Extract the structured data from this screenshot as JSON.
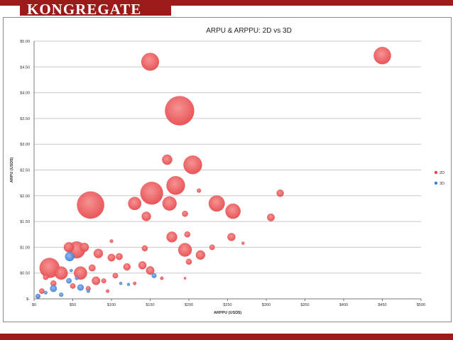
{
  "brand": {
    "name": "KONGREGATE"
  },
  "colors": {
    "brand_red": "#9b1b1b",
    "series_2d": "#e8464a",
    "series_3d": "#3a7fd6"
  },
  "chart_data": {
    "type": "scatter",
    "title": "ARPU & ARPPU: 2D vs 3D",
    "xlabel": "ARPPU (USD$)",
    "ylabel": "ARPU (USD$)",
    "xlim": [
      0,
      500
    ],
    "ylim": [
      0,
      5
    ],
    "x_ticks": [
      "$0",
      "$50",
      "$100",
      "$150",
      "$200",
      "$250",
      "$300",
      "$350",
      "$400",
      "$450",
      "$500"
    ],
    "y_ticks": [
      "$-",
      "$0.50",
      "$1.00",
      "$1.50",
      "$2.00",
      "$2.50",
      "$3.00",
      "$3.50",
      "$4.00",
      "$4.50",
      "$5.00"
    ],
    "grid": true,
    "legend_position": "right",
    "series": [
      {
        "name": "2D",
        "color": "#e8464a",
        "points": [
          {
            "x": 150,
            "y": 4.6,
            "size": 5.5
          },
          {
            "x": 450,
            "y": 4.72,
            "size": 5.2
          },
          {
            "x": 188,
            "y": 3.65,
            "size": 15
          },
          {
            "x": 73,
            "y": 1.82,
            "size": 13
          },
          {
            "x": 152,
            "y": 2.05,
            "size": 9
          },
          {
            "x": 183,
            "y": 2.2,
            "size": 6
          },
          {
            "x": 205,
            "y": 2.6,
            "size": 6
          },
          {
            "x": 236,
            "y": 1.85,
            "size": 4.5
          },
          {
            "x": 257,
            "y": 1.7,
            "size": 4
          },
          {
            "x": 172,
            "y": 2.7,
            "size": 1.8
          },
          {
            "x": 130,
            "y": 1.85,
            "size": 3
          },
          {
            "x": 175,
            "y": 1.85,
            "size": 3.5
          },
          {
            "x": 145,
            "y": 1.6,
            "size": 1.5
          },
          {
            "x": 195,
            "y": 1.65,
            "size": 0.6
          },
          {
            "x": 213,
            "y": 2.1,
            "size": 0.3
          },
          {
            "x": 318,
            "y": 2.05,
            "size": 0.9
          },
          {
            "x": 306,
            "y": 1.58,
            "size": 1
          },
          {
            "x": 178,
            "y": 1.2,
            "size": 2
          },
          {
            "x": 198,
            "y": 1.25,
            "size": 0.6
          },
          {
            "x": 255,
            "y": 1.2,
            "size": 1.1
          },
          {
            "x": 195,
            "y": 0.95,
            "size": 3.2
          },
          {
            "x": 215,
            "y": 0.85,
            "size": 1.5
          },
          {
            "x": 230,
            "y": 1.0,
            "size": 0.5
          },
          {
            "x": 270,
            "y": 1.08,
            "size": 0.15
          },
          {
            "x": 55,
            "y": 0.95,
            "size": 5
          },
          {
            "x": 20,
            "y": 0.6,
            "size": 7
          },
          {
            "x": 45,
            "y": 1.0,
            "size": 1.8
          },
          {
            "x": 65,
            "y": 1.0,
            "size": 1.4
          },
          {
            "x": 83,
            "y": 0.88,
            "size": 1.5
          },
          {
            "x": 100,
            "y": 0.8,
            "size": 1.0
          },
          {
            "x": 35,
            "y": 0.5,
            "size": 3
          },
          {
            "x": 60,
            "y": 0.5,
            "size": 3
          },
          {
            "x": 110,
            "y": 0.82,
            "size": 0.8
          },
          {
            "x": 100,
            "y": 1.12,
            "size": 0.2
          },
          {
            "x": 143,
            "y": 0.98,
            "size": 0.6
          },
          {
            "x": 200,
            "y": 0.72,
            "size": 0.6
          },
          {
            "x": 80,
            "y": 0.35,
            "size": 1.2
          },
          {
            "x": 105,
            "y": 0.45,
            "size": 0.5
          },
          {
            "x": 120,
            "y": 0.62,
            "size": 0.9
          },
          {
            "x": 140,
            "y": 0.65,
            "size": 1.1
          },
          {
            "x": 150,
            "y": 0.55,
            "size": 1.2
          },
          {
            "x": 10,
            "y": 0.15,
            "size": 0.5
          },
          {
            "x": 25,
            "y": 0.3,
            "size": 0.6
          },
          {
            "x": 70,
            "y": 0.2,
            "size": 0.4
          },
          {
            "x": 90,
            "y": 0.35,
            "size": 0.4
          },
          {
            "x": 165,
            "y": 0.4,
            "size": 0.2
          },
          {
            "x": 130,
            "y": 0.3,
            "size": 0.2
          },
          {
            "x": 195,
            "y": 0.4,
            "size": 0.1
          },
          {
            "x": 5,
            "y": 0.05,
            "size": 0.3
          },
          {
            "x": 15,
            "y": 0.42,
            "size": 0.5
          },
          {
            "x": 95,
            "y": 0.15,
            "size": 0.2
          },
          {
            "x": 50,
            "y": 0.25,
            "size": 0.5
          },
          {
            "x": 75,
            "y": 0.6,
            "size": 0.8
          }
        ]
      },
      {
        "name": "3D",
        "color": "#3a7fd6",
        "points": [
          {
            "x": 46,
            "y": 0.82,
            "size": 1.5
          },
          {
            "x": 155,
            "y": 0.45,
            "size": 0.4
          },
          {
            "x": 45,
            "y": 0.35,
            "size": 0.5
          },
          {
            "x": 60,
            "y": 0.22,
            "size": 0.7
          },
          {
            "x": 25,
            "y": 0.2,
            "size": 0.8
          },
          {
            "x": 112,
            "y": 0.3,
            "size": 0.15
          },
          {
            "x": 122,
            "y": 0.28,
            "size": 0.15
          },
          {
            "x": 5,
            "y": 0.05,
            "size": 0.4
          },
          {
            "x": 35,
            "y": 0.08,
            "size": 0.3
          },
          {
            "x": 70,
            "y": 0.15,
            "size": 0.2
          },
          {
            "x": 15,
            "y": 0.12,
            "size": 0.2
          },
          {
            "x": 55,
            "y": 0.4,
            "size": 0.2
          },
          {
            "x": 48,
            "y": 0.55,
            "size": 0.15
          }
        ]
      }
    ]
  }
}
